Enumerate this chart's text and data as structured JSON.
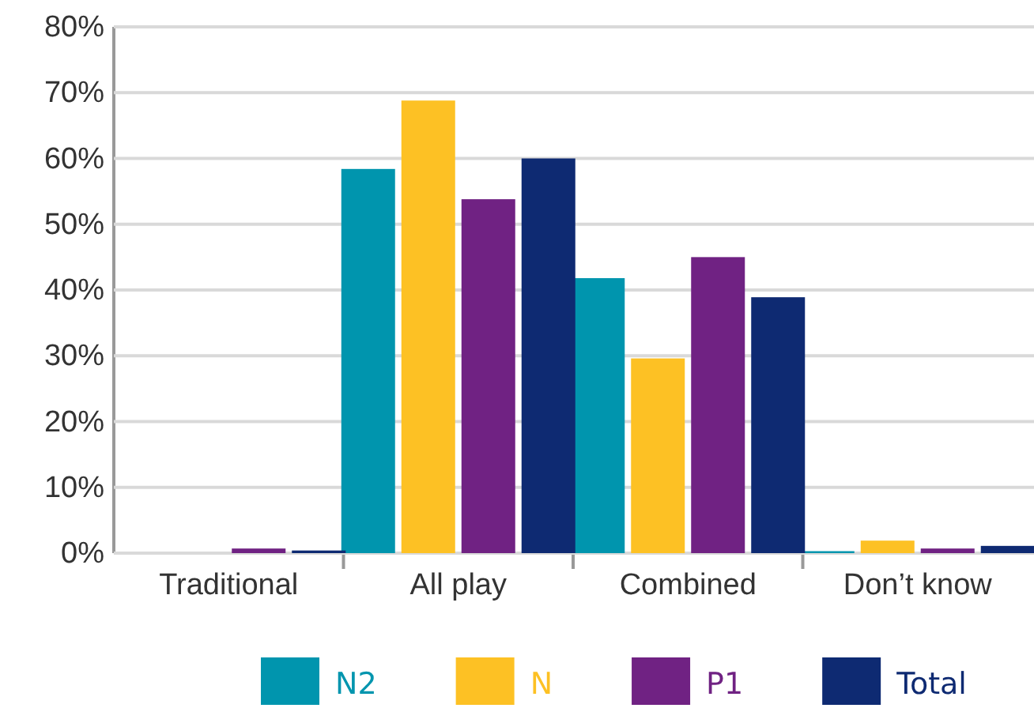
{
  "chart_data": {
    "type": "bar",
    "categories": [
      "Traditional",
      "All play",
      "Combined",
      "Don’t know"
    ],
    "series": [
      {
        "name": "N2",
        "color": "#0095ae",
        "values": [
          0,
          58.4,
          41.8,
          0.3
        ]
      },
      {
        "name": "N",
        "color": "#fdc124",
        "values": [
          0,
          68.8,
          29.6,
          1.9
        ]
      },
      {
        "name": "P1",
        "color": "#702283",
        "values": [
          0.7,
          53.8,
          45,
          0.7
        ]
      },
      {
        "name": "Total",
        "color": "#0e2a72",
        "values": [
          0.4,
          60,
          38.9,
          1.1
        ]
      }
    ],
    "ylim": [
      0,
      80
    ],
    "yticks": [
      {
        "value": 0,
        "label": "0%"
      },
      {
        "value": 10,
        "label": "10%"
      },
      {
        "value": 20,
        "label": "20%"
      },
      {
        "value": 30,
        "label": "30%"
      },
      {
        "value": 40,
        "label": "40%"
      },
      {
        "value": 50,
        "label": "50%"
      },
      {
        "value": 60,
        "label": "60%"
      },
      {
        "value": 70,
        "label": "70%"
      },
      {
        "value": 80,
        "label": "80%"
      }
    ],
    "grid": "y",
    "legend": "bottom"
  }
}
